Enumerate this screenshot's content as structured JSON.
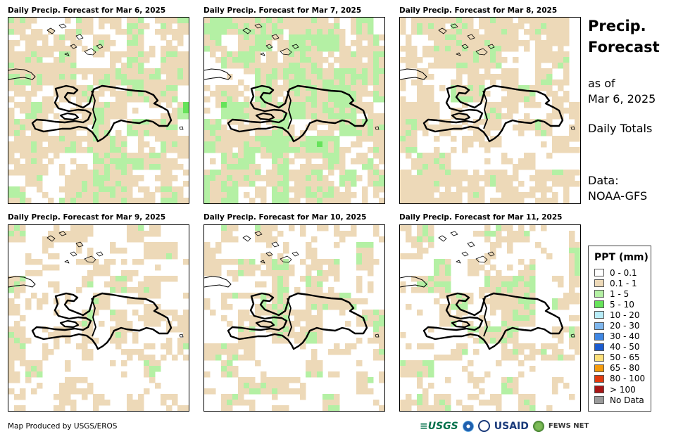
{
  "panels": [
    {
      "title": "Daily Precip. Forecast for Mar 6, 2025",
      "seed": 11,
      "w_none": 0.38,
      "w_light": 0.34,
      "w_green": 0.24,
      "w_mid": 0.03,
      "w_blue": 0.01
    },
    {
      "title": "Daily Precip. Forecast for Mar 7, 2025",
      "seed": 23,
      "w_none": 0.33,
      "w_light": 0.27,
      "w_green": 0.37,
      "w_mid": 0.03,
      "w_blue": 0.0
    },
    {
      "title": "Daily Precip. Forecast for Mar 8, 2025",
      "seed": 37,
      "w_none": 0.45,
      "w_light": 0.38,
      "w_green": 0.17,
      "w_mid": 0.0,
      "w_blue": 0.0
    },
    {
      "title": "Daily Precip. Forecast for Mar 9, 2025",
      "seed": 41,
      "w_none": 0.58,
      "w_light": 0.28,
      "w_green": 0.14,
      "w_mid": 0.0,
      "w_blue": 0.0
    },
    {
      "title": "Daily Precip. Forecast for Mar 10, 2025",
      "seed": 53,
      "w_none": 0.55,
      "w_light": 0.27,
      "w_green": 0.18,
      "w_mid": 0.0,
      "w_blue": 0.0
    },
    {
      "title": "Daily Precip. Forecast for Mar 11, 2025",
      "seed": 67,
      "w_none": 0.52,
      "w_light": 0.26,
      "w_green": 0.18,
      "w_mid": 0.02,
      "w_blue": 0.02
    }
  ],
  "side": {
    "title_line1": "Precip.",
    "title_line2": "Forecast",
    "asof_label": "as of",
    "asof_date": "Mar 6, 2025",
    "totals": "Daily Totals",
    "data_label": "Data:",
    "data_source": "NOAA-GFS"
  },
  "legend": {
    "title": "PPT (mm)",
    "items": [
      {
        "label": "0 - 0.1",
        "color": "#ffffff"
      },
      {
        "label": "0.1 - 1",
        "color": "#edd9b8"
      },
      {
        "label": "1 - 5",
        "color": "#b4f0a4"
      },
      {
        "label": "5 - 10",
        "color": "#66e35a"
      },
      {
        "label": "10 - 20",
        "color": "#b8ecf8"
      },
      {
        "label": "20 - 30",
        "color": "#7fb7ee"
      },
      {
        "label": "30 - 40",
        "color": "#3f87e4"
      },
      {
        "label": "40 - 50",
        "color": "#1c5ccf"
      },
      {
        "label": "50 - 65",
        "color": "#fde07a"
      },
      {
        "label": "65 - 80",
        "color": "#f59b0c"
      },
      {
        "label": "80 - 100",
        "color": "#e23b0e"
      },
      {
        "label": "> 100",
        "color": "#a81515"
      },
      {
        "label": "No Data",
        "color": "#9a9a9a"
      }
    ]
  },
  "credit": "Map Produced by USGS/EROS",
  "logos": {
    "usgs": "≡USGS",
    "usaid": "USAID",
    "fews": "FEWS NET"
  }
}
